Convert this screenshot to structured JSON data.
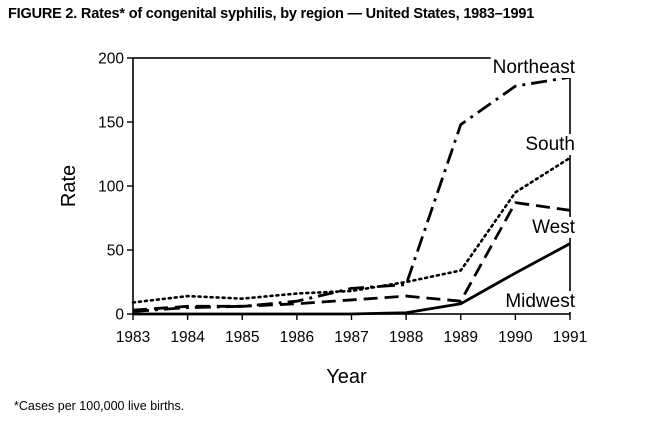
{
  "figure_title": "FIGURE 2. Rates* of congenital syphilis, by region — United States, 1983–1991",
  "footnote": "*Cases per 100,000 live births.",
  "chart_data": {
    "type": "line",
    "title": "Rates* of congenital syphilis, by region — United States, 1983–1991",
    "xlabel": "Year",
    "ylabel": "Rate",
    "x": [
      1983,
      1984,
      1985,
      1986,
      1987,
      1988,
      1989,
      1990,
      1991
    ],
    "x_tick_labels": [
      "1983",
      "1984",
      "1985",
      "1986",
      "1987",
      "1988",
      "1989",
      "1990",
      "1991"
    ],
    "y_ticks": [
      0,
      50,
      100,
      150,
      200
    ],
    "y_tick_labels": [
      "0",
      "50",
      "100",
      "150",
      "200"
    ],
    "xlim": [
      1983,
      1991
    ],
    "ylim": [
      0,
      200
    ],
    "grid": false,
    "series": [
      {
        "name": "Northeast",
        "style": "dash-dot",
        "values": [
          2,
          5,
          6,
          10,
          20,
          23,
          148,
          178,
          185
        ]
      },
      {
        "name": "South",
        "style": "dotted",
        "values": [
          9,
          14,
          12,
          16,
          18,
          25,
          34,
          95,
          122
        ]
      },
      {
        "name": "West",
        "style": "dashed",
        "values": [
          3,
          6,
          6,
          8,
          11,
          14,
          10,
          87,
          81
        ]
      },
      {
        "name": "Midwest",
        "style": "solid",
        "values": [
          0,
          0,
          0,
          0,
          0,
          1,
          8,
          32,
          55
        ]
      }
    ]
  }
}
